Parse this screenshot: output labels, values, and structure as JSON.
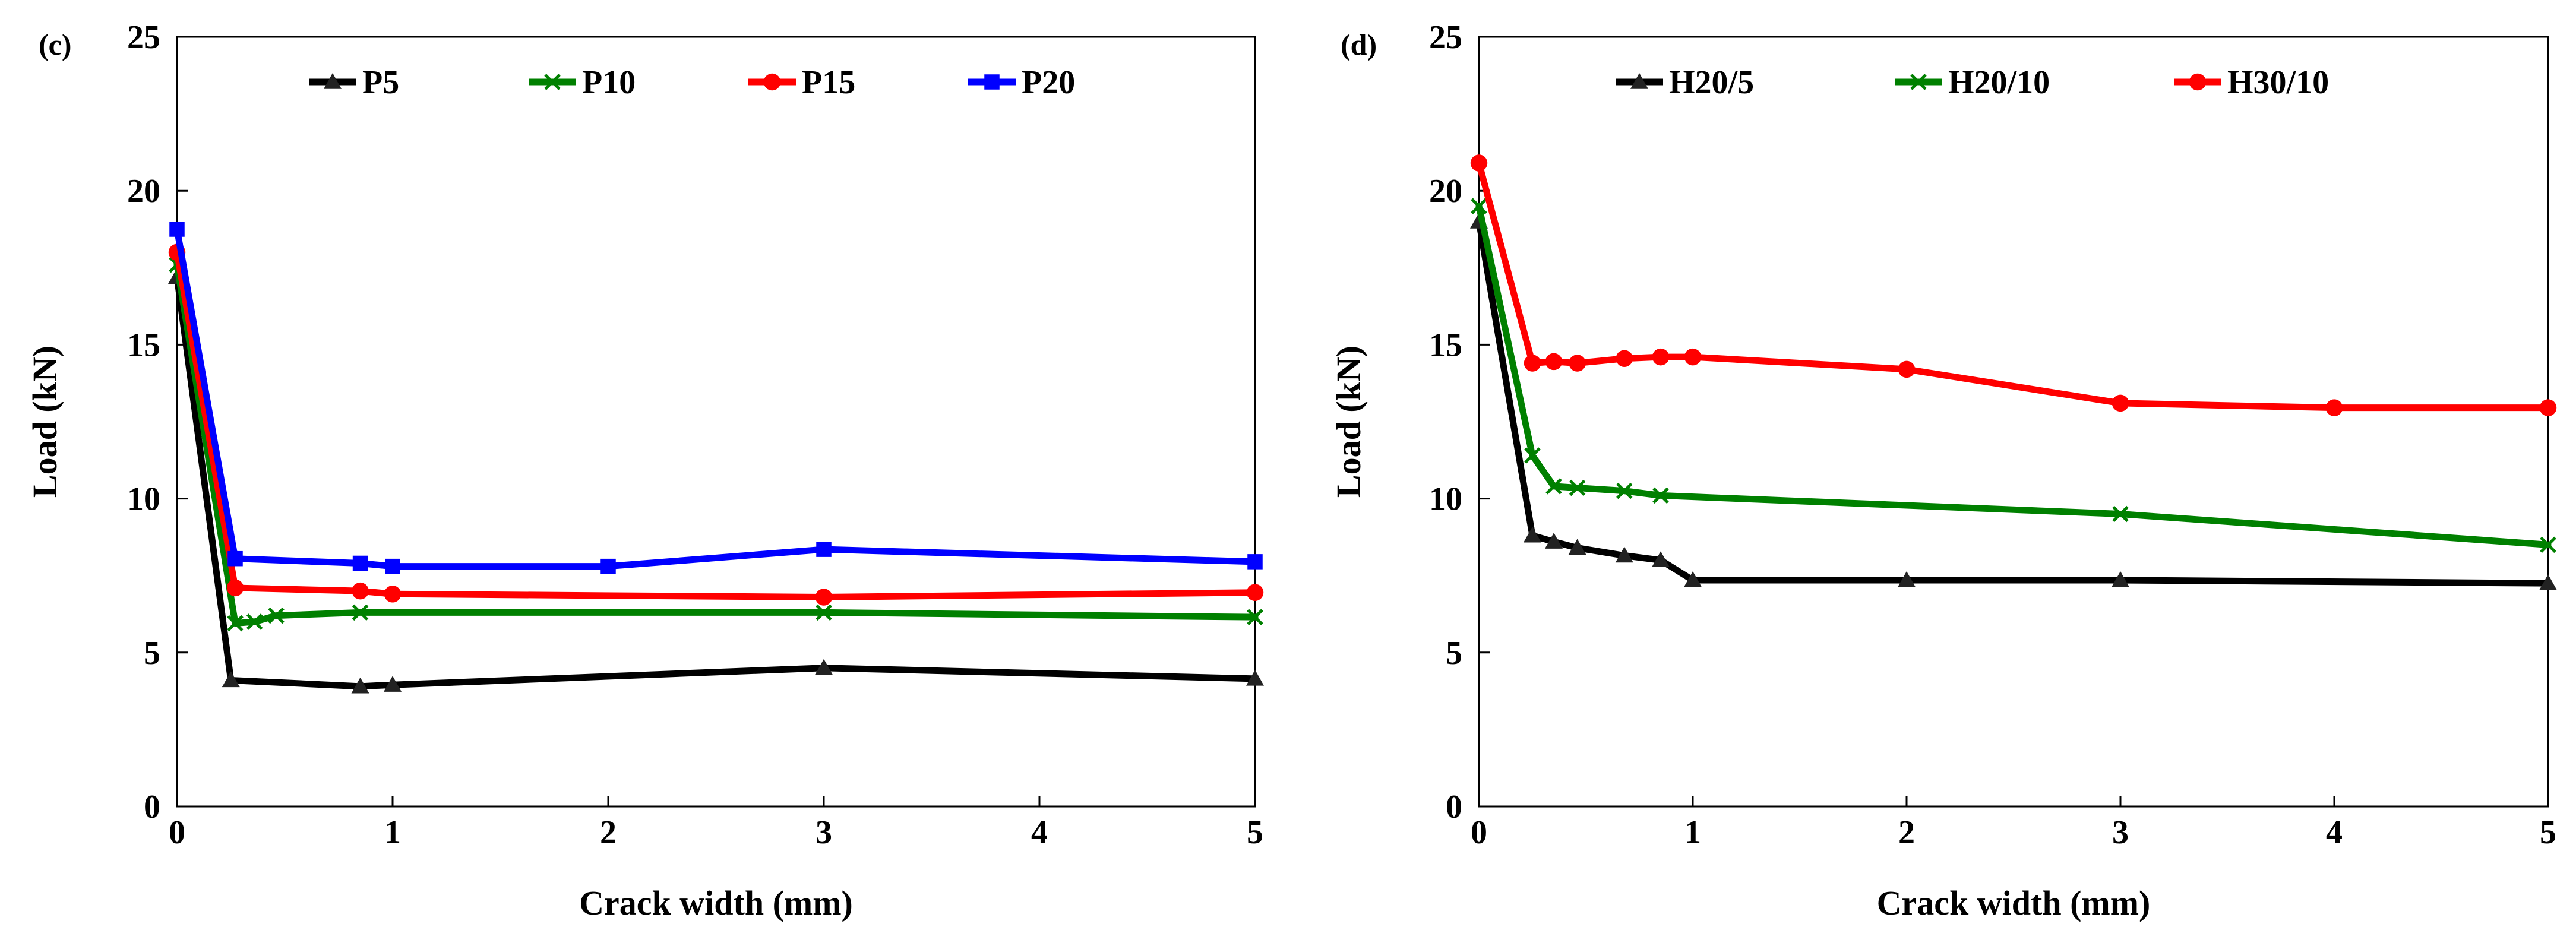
{
  "figure": {
    "chart_data": [
      {
        "type": "line",
        "panel_label": "(c)",
        "xlabel": "Crack width (mm)",
        "ylabel": "Load (kN)",
        "xlim": [
          0,
          5
        ],
        "ylim": [
          0,
          25
        ],
        "xticks": [
          0,
          1,
          2,
          3,
          4,
          5
        ],
        "yticks": [
          0,
          5,
          10,
          15,
          20,
          25
        ],
        "grid": false,
        "legend_position": "top",
        "series": [
          {
            "name": "P5",
            "color": "#000000",
            "marker": "triangle",
            "x": [
              0,
              0.25,
              0.85,
              1.0,
              3.0,
              5.0
            ],
            "y": [
              17.2,
              4.1,
              3.9,
              3.95,
              4.5,
              4.15
            ]
          },
          {
            "name": "P10",
            "color": "#008000",
            "marker": "x",
            "x": [
              0,
              0.27,
              0.36,
              0.46,
              0.85,
              3.0,
              5.0
            ],
            "y": [
              17.6,
              5.95,
              6.0,
              6.2,
              6.3,
              6.3,
              6.15
            ]
          },
          {
            "name": "P15",
            "color": "#ff0000",
            "marker": "circle",
            "x": [
              0,
              0.27,
              0.85,
              1.0,
              3.0,
              5.0
            ],
            "y": [
              18.0,
              7.1,
              7.0,
              6.9,
              6.8,
              6.95
            ]
          },
          {
            "name": "P20",
            "color": "#0000ff",
            "marker": "square",
            "x": [
              0,
              0.27,
              0.85,
              1.0,
              2.0,
              3.0,
              5.0
            ],
            "y": [
              18.75,
              8.05,
              7.9,
              7.8,
              7.8,
              8.35,
              7.95
            ]
          }
        ]
      },
      {
        "type": "line",
        "panel_label": "(d)",
        "xlabel": "Crack width (mm)",
        "ylabel": "Load (kN)",
        "xlim": [
          0,
          5
        ],
        "ylim": [
          0,
          25
        ],
        "xticks": [
          0,
          1,
          2,
          3,
          4,
          5
        ],
        "yticks": [
          0,
          5,
          10,
          15,
          20,
          25
        ],
        "grid": false,
        "legend_position": "top",
        "series": [
          {
            "name": "H20/5",
            "color": "#000000",
            "marker": "triangle",
            "x": [
              0,
              0.25,
              0.35,
              0.46,
              0.68,
              0.85,
              1.0,
              2.0,
              3.0,
              5.0
            ],
            "y": [
              19.0,
              8.8,
              8.6,
              8.4,
              8.15,
              8.0,
              7.35,
              7.35,
              7.35,
              7.25
            ]
          },
          {
            "name": "H20/10",
            "color": "#008000",
            "marker": "x",
            "x": [
              0,
              0.25,
              0.35,
              0.46,
              0.68,
              0.85,
              3.0,
              5.0
            ],
            "y": [
              19.5,
              11.4,
              10.4,
              10.35,
              10.25,
              10.1,
              9.5,
              8.5
            ]
          },
          {
            "name": "H30/10",
            "color": "#ff0000",
            "marker": "circle",
            "x": [
              0,
              0.25,
              0.35,
              0.46,
              0.68,
              0.85,
              1.0,
              2.0,
              3.0,
              4.0,
              5.0
            ],
            "y": [
              20.9,
              14.4,
              14.45,
              14.4,
              14.55,
              14.6,
              14.6,
              14.2,
              13.1,
              12.95,
              12.95
            ]
          }
        ]
      }
    ]
  }
}
